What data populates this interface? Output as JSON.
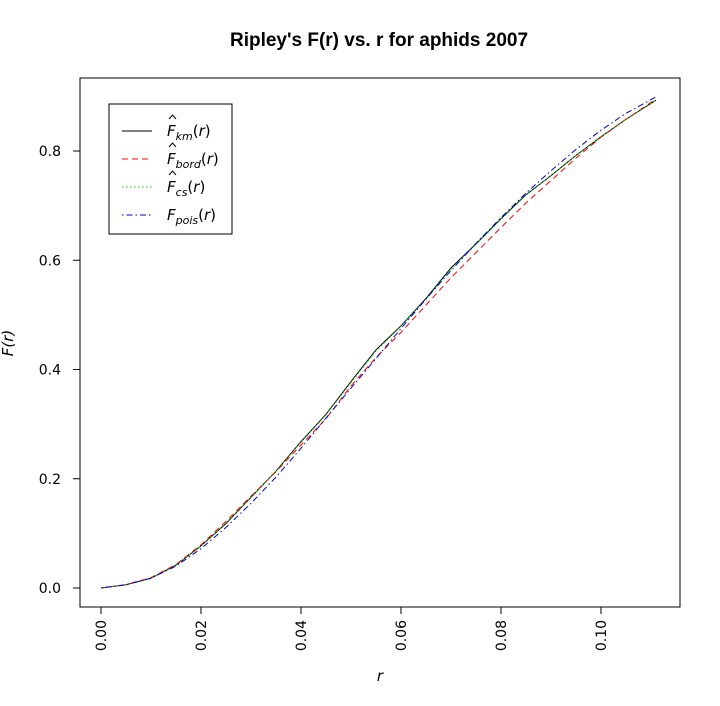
{
  "chart_data": {
    "type": "line",
    "title": "Ripley's F(r) vs. r for aphids 2007",
    "xlabel": "r",
    "ylabel": "F(r)",
    "xlim": [
      0.0,
      0.111
    ],
    "ylim": [
      0.0,
      0.9
    ],
    "x_ticks": [
      "0.00",
      "0.02",
      "0.04",
      "0.06",
      "0.08",
      "0.10"
    ],
    "x_tick_values": [
      0.0,
      0.02,
      0.04,
      0.06,
      0.08,
      0.1
    ],
    "y_ticks": [
      "0.0",
      "0.2",
      "0.4",
      "0.6",
      "0.8"
    ],
    "y_tick_values": [
      0.0,
      0.2,
      0.4,
      0.6,
      0.8
    ],
    "legend_position": "top-left",
    "x": [
      0.0,
      0.005,
      0.01,
      0.015,
      0.02,
      0.025,
      0.03,
      0.035,
      0.04,
      0.045,
      0.05,
      0.055,
      0.06,
      0.065,
      0.07,
      0.075,
      0.08,
      0.085,
      0.09,
      0.095,
      0.1,
      0.105,
      0.111
    ],
    "series": [
      {
        "name": "F̂km(r)",
        "color": "#000000",
        "dash": "solid",
        "values": [
          0.0,
          0.006,
          0.018,
          0.042,
          0.077,
          0.118,
          0.166,
          0.214,
          0.268,
          0.318,
          0.378,
          0.436,
          0.48,
          0.53,
          0.586,
          0.63,
          0.676,
          0.72,
          0.755,
          0.792,
          0.826,
          0.858,
          0.893
        ]
      },
      {
        "name": "F̂bord(r)",
        "color": "#ff0000",
        "dash": "dashed",
        "values": [
          0.0,
          0.006,
          0.019,
          0.043,
          0.079,
          0.122,
          0.168,
          0.213,
          0.262,
          0.31,
          0.37,
          0.422,
          0.468,
          0.518,
          0.568,
          0.614,
          0.66,
          0.705,
          0.746,
          0.787,
          0.825,
          0.858,
          0.895
        ]
      },
      {
        "name": "F̂cs(r)",
        "color": "#00cc00",
        "dash": "dotted",
        "values": [
          0.0,
          0.006,
          0.018,
          0.042,
          0.077,
          0.119,
          0.166,
          0.214,
          0.267,
          0.317,
          0.376,
          0.434,
          0.479,
          0.529,
          0.584,
          0.629,
          0.675,
          0.719,
          0.755,
          0.792,
          0.826,
          0.858,
          0.893
        ]
      },
      {
        "name": "Fpois(r)",
        "color": "#0000cc",
        "dash": "dashdot",
        "values": [
          0.0,
          0.006,
          0.018,
          0.04,
          0.072,
          0.111,
          0.155,
          0.203,
          0.256,
          0.311,
          0.366,
          0.42,
          0.475,
          0.529,
          0.581,
          0.631,
          0.678,
          0.723,
          0.764,
          0.803,
          0.838,
          0.869,
          0.899
        ]
      }
    ],
    "legend": [
      {
        "glyph": "F",
        "sub": "km",
        "tail": "(r)",
        "hat": true
      },
      {
        "glyph": "F",
        "sub": "bord",
        "tail": "(r)",
        "hat": true
      },
      {
        "glyph": "F",
        "sub": "cs",
        "tail": "(r)",
        "hat": true
      },
      {
        "glyph": "F",
        "sub": "pois",
        "tail": "(r)",
        "hat": false
      }
    ]
  }
}
